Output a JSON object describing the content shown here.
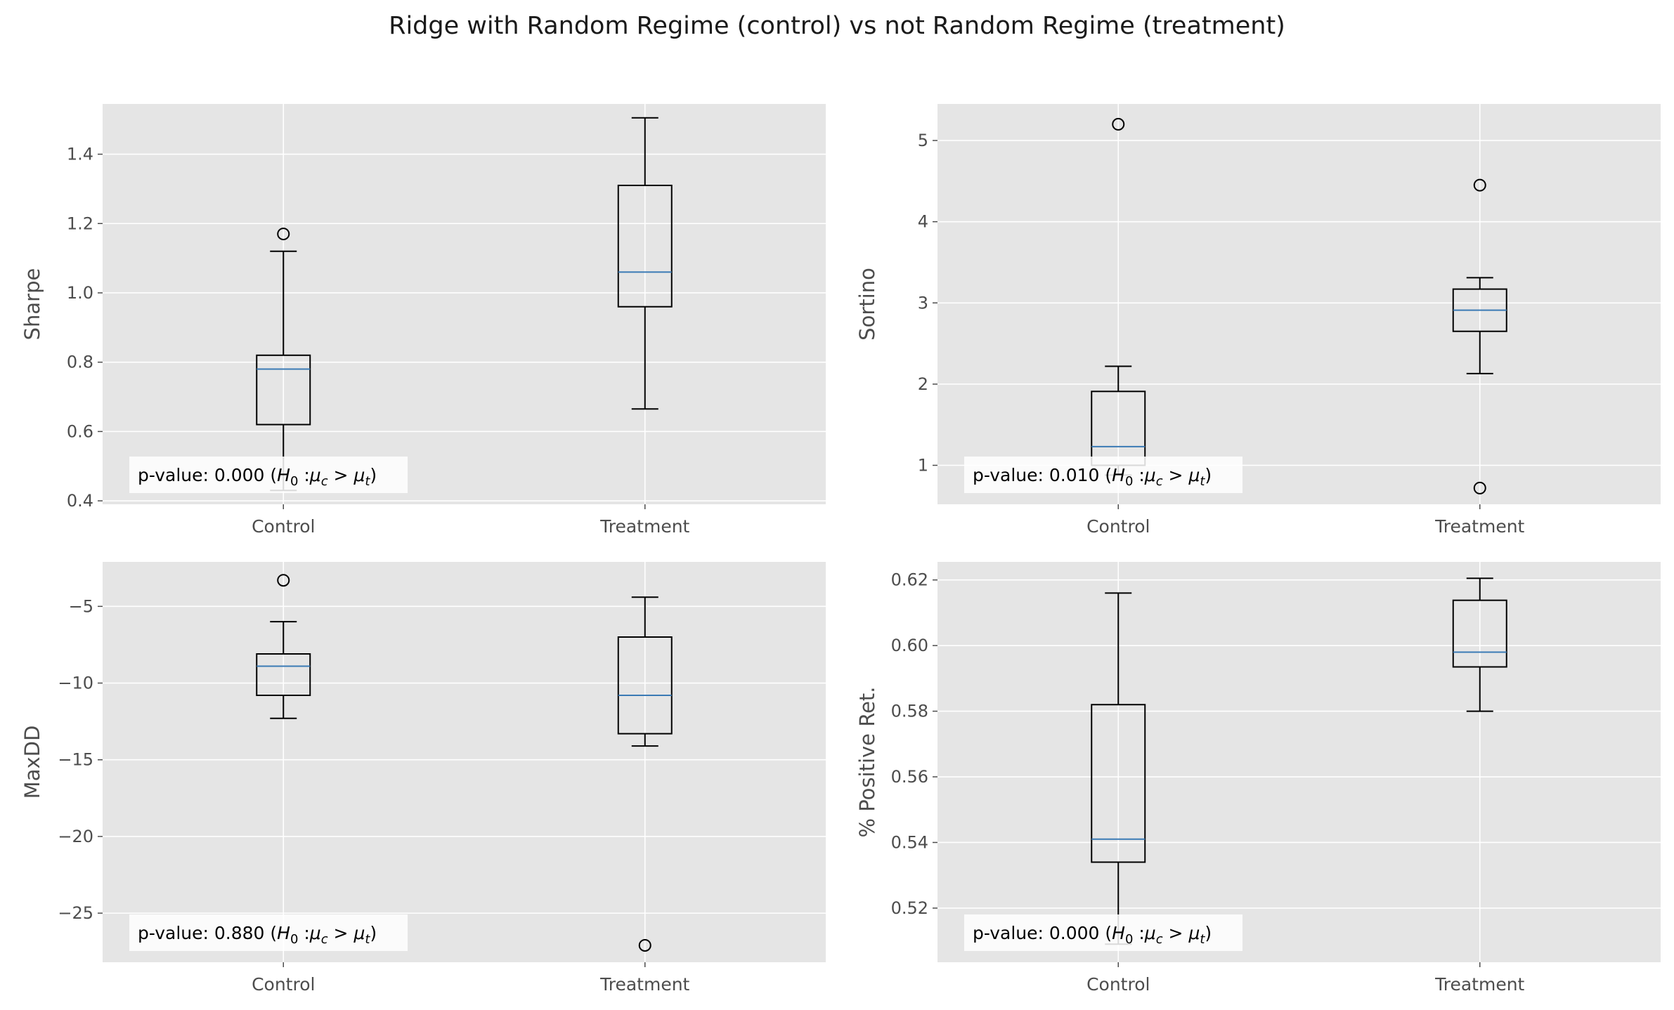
{
  "suptitle": "Ridge with Random Regime (control) vs not Random Regime (treatment)",
  "colors": {
    "panel_bg": "#e5e5e5",
    "grid": "#ffffff",
    "box": "#000000",
    "median": "#3a7ab5",
    "tick_text": "#4d4d4d",
    "label_text": "#4d4d4d"
  },
  "chart_data": [
    {
      "type": "box",
      "ylabel": "Sharpe",
      "categories": [
        "Control",
        "Treatment"
      ],
      "ylim": [
        0.39,
        1.545
      ],
      "yticks": [
        0.4,
        0.6,
        0.8,
        1.0,
        1.2,
        1.4
      ],
      "ytick_labels": [
        "0.4",
        "0.6",
        "0.8",
        "1.0",
        "1.2",
        "1.4"
      ],
      "grid": true,
      "boxes": [
        {
          "whislo": 0.43,
          "q1": 0.62,
          "med": 0.78,
          "q3": 0.82,
          "whishi": 1.12,
          "fliers": [
            1.17
          ]
        },
        {
          "whislo": 0.665,
          "q1": 0.96,
          "med": 1.06,
          "q3": 1.31,
          "whishi": 1.505,
          "fliers": []
        }
      ],
      "annotation": {
        "prefix": "p-value: 0.000 (",
        "hyp": "H",
        "hyp_sub": "0",
        "colon": ":",
        "mu1": "μ",
        "mu1_sub": "c",
        "gt": ">",
        "mu2": "μ",
        "mu2_sub": "t",
        "suffix": ")"
      }
    },
    {
      "type": "box",
      "ylabel": "Sortino",
      "categories": [
        "Control",
        "Treatment"
      ],
      "ylim": [
        0.52,
        5.45
      ],
      "yticks": [
        1,
        2,
        3,
        4,
        5
      ],
      "ytick_labels": [
        "1",
        "2",
        "3",
        "4",
        "5"
      ],
      "grid": true,
      "boxes": [
        {
          "whislo": 0.88,
          "q1": 1.0,
          "med": 1.23,
          "q3": 1.91,
          "whishi": 2.22,
          "fliers": [
            5.2
          ]
        },
        {
          "whislo": 2.13,
          "q1": 2.65,
          "med": 2.91,
          "q3": 3.17,
          "whishi": 3.31,
          "fliers": [
            4.45,
            0.72
          ]
        }
      ],
      "annotation": {
        "prefix": "p-value: 0.010 (",
        "hyp": "H",
        "hyp_sub": "0",
        "colon": ":",
        "mu1": "μ",
        "mu1_sub": "c",
        "gt": ">",
        "mu2": "μ",
        "mu2_sub": "t",
        "suffix": ")"
      }
    },
    {
      "type": "box",
      "ylabel": "MaxDD",
      "categories": [
        "Control",
        "Treatment"
      ],
      "ylim": [
        -28.2,
        -2.1
      ],
      "yticks": [
        -25,
        -20,
        -15,
        -10,
        -5
      ],
      "ytick_labels": [
        "−25",
        "−20",
        "−15",
        "−10",
        "−5"
      ],
      "grid": true,
      "boxes": [
        {
          "whislo": -12.3,
          "q1": -10.8,
          "med": -8.9,
          "q3": -8.1,
          "whishi": -6.0,
          "fliers": [
            -3.3
          ]
        },
        {
          "whislo": -14.1,
          "q1": -13.3,
          "med": -10.8,
          "q3": -7.0,
          "whishi": -4.4,
          "fliers": [
            -27.1
          ]
        }
      ],
      "annotation": {
        "prefix": "p-value: 0.880 (",
        "hyp": "H",
        "hyp_sub": "0",
        "colon": ":",
        "mu1": "μ",
        "mu1_sub": "c",
        "gt": ">",
        "mu2": "μ",
        "mu2_sub": "t",
        "suffix": ")"
      }
    },
    {
      "type": "box",
      "ylabel": "% Positive Ret.",
      "categories": [
        "Control",
        "Treatment"
      ],
      "ylim": [
        0.5035,
        0.6255
      ],
      "yticks": [
        0.52,
        0.54,
        0.56,
        0.58,
        0.6,
        0.62
      ],
      "ytick_labels": [
        "0.52",
        "0.54",
        "0.56",
        "0.58",
        "0.60",
        "0.62"
      ],
      "grid": true,
      "boxes": [
        {
          "whislo": 0.509,
          "q1": 0.534,
          "med": 0.541,
          "q3": 0.582,
          "whishi": 0.616,
          "fliers": []
        },
        {
          "whislo": 0.58,
          "q1": 0.5935,
          "med": 0.598,
          "q3": 0.6138,
          "whishi": 0.6205,
          "fliers": []
        }
      ],
      "annotation": {
        "prefix": "p-value: 0.000 (",
        "hyp": "H",
        "hyp_sub": "0",
        "colon": ":",
        "mu1": "μ",
        "mu1_sub": "c",
        "gt": ">",
        "mu2": "μ",
        "mu2_sub": "t",
        "suffix": ")"
      }
    }
  ]
}
